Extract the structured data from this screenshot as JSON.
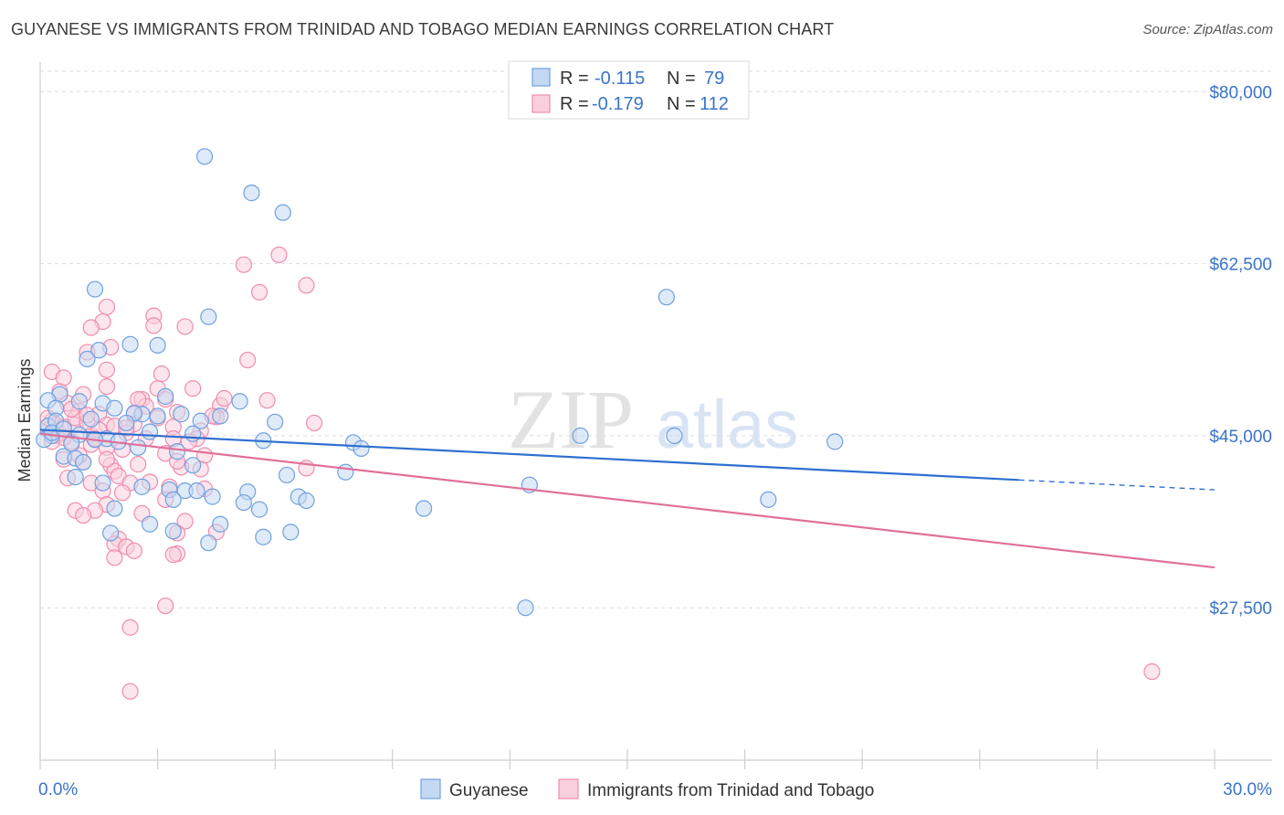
{
  "title": "GUYANESE VS IMMIGRANTS FROM TRINIDAD AND TOBAGO MEDIAN EARNINGS CORRELATION CHART",
  "source": "Source: ZipAtlas.com",
  "watermark": {
    "zip": "ZIP",
    "atlas": "atlas"
  },
  "colors": {
    "blue": "#6fa0e0",
    "blue_fill": "#c5d8f3",
    "blue_line": "#2f6fcf",
    "pink": "#f08cae",
    "pink_fill": "#f9cfdd",
    "pink_line": "#e0709a",
    "axis_text": "#3a74c9",
    "grid": "#dddddd"
  },
  "legend": {
    "rows": [
      {
        "r_label": "R = ",
        "r_value": "-0.115",
        "n_label": "N = ",
        "n_value": "79"
      },
      {
        "r_label": "R = ",
        "r_value": "-0.179",
        "n_label": "N = ",
        "n_value": "112"
      }
    ]
  },
  "chart_data": {
    "type": "scatter",
    "xlabel": "",
    "ylabel": "Median Earnings",
    "xlim": [
      0,
      30
    ],
    "ylim": [
      12000,
      83000
    ],
    "x_tick_labels": [
      "0.0%",
      "30.0%"
    ],
    "y_ticks": [
      27500,
      45000,
      62500,
      80000
    ],
    "y_tick_labels": [
      "$27,500",
      "$45,000",
      "$62,500",
      "$80,000"
    ],
    "legend_position": "top-center",
    "series": [
      {
        "name": "Guyanese",
        "R": -0.115,
        "N": 79,
        "trend": {
          "x0": 0,
          "y0": 45600,
          "x1": 25,
          "y1": 40500,
          "dash_to": 30,
          "dash_y": 39500
        },
        "points": [
          [
            4.2,
            73400
          ],
          [
            5.4,
            69700
          ],
          [
            6.2,
            67700
          ],
          [
            1.4,
            59900
          ],
          [
            4.3,
            57100
          ],
          [
            2.3,
            54300
          ],
          [
            1.5,
            53700
          ],
          [
            3.0,
            54200
          ],
          [
            1.2,
            52800
          ],
          [
            16.0,
            59100
          ],
          [
            0.5,
            49200
          ],
          [
            1.0,
            48500
          ],
          [
            1.6,
            48300
          ],
          [
            2.6,
            47200
          ],
          [
            3.2,
            49000
          ],
          [
            5.1,
            48500
          ],
          [
            0.2,
            48600
          ],
          [
            0.4,
            47800
          ],
          [
            1.9,
            47800
          ],
          [
            2.4,
            47300
          ],
          [
            4.6,
            47000
          ],
          [
            3.0,
            47000
          ],
          [
            4.1,
            46500
          ],
          [
            6.0,
            46400
          ],
          [
            2.8,
            45400
          ],
          [
            3.9,
            45200
          ],
          [
            1.7,
            44700
          ],
          [
            5.7,
            44500
          ],
          [
            8.0,
            44300
          ],
          [
            13.8,
            45000
          ],
          [
            16.2,
            45000
          ],
          [
            20.3,
            44400
          ],
          [
            0.3,
            45000
          ],
          [
            0.1,
            44600
          ],
          [
            1.0,
            45100
          ],
          [
            1.4,
            44600
          ],
          [
            2.0,
            44400
          ],
          [
            3.5,
            43400
          ],
          [
            8.2,
            43700
          ],
          [
            0.6,
            42900
          ],
          [
            0.9,
            42700
          ],
          [
            1.1,
            42300
          ],
          [
            3.9,
            42000
          ],
          [
            6.3,
            41000
          ],
          [
            7.8,
            41300
          ],
          [
            0.9,
            40800
          ],
          [
            1.6,
            40200
          ],
          [
            2.6,
            39800
          ],
          [
            3.3,
            39500
          ],
          [
            3.7,
            39400
          ],
          [
            4.0,
            39400
          ],
          [
            5.3,
            39300
          ],
          [
            6.6,
            38800
          ],
          [
            12.5,
            40000
          ],
          [
            4.4,
            38800
          ],
          [
            3.4,
            38500
          ],
          [
            5.2,
            38200
          ],
          [
            6.8,
            38400
          ],
          [
            1.9,
            37600
          ],
          [
            5.6,
            37500
          ],
          [
            9.8,
            37600
          ],
          [
            18.6,
            38500
          ],
          [
            2.8,
            36000
          ],
          [
            4.6,
            36000
          ],
          [
            3.4,
            35300
          ],
          [
            1.8,
            35100
          ],
          [
            6.4,
            35200
          ],
          [
            5.7,
            34700
          ],
          [
            4.3,
            34100
          ],
          [
            12.4,
            27500
          ],
          [
            0.2,
            46000
          ],
          [
            0.4,
            46500
          ],
          [
            0.3,
            45300
          ],
          [
            0.6,
            45700
          ],
          [
            0.8,
            44200
          ],
          [
            2.2,
            46300
          ],
          [
            1.3,
            46700
          ],
          [
            3.6,
            47200
          ],
          [
            2.5,
            43800
          ]
        ]
      },
      {
        "name": "Immigrants from Trinidad and Tobago",
        "R": -0.179,
        "N": 112,
        "trend": {
          "x0": 0,
          "y0": 45200,
          "x1": 30,
          "y1": 31600
        },
        "points": [
          [
            6.1,
            63400
          ],
          [
            5.2,
            62400
          ],
          [
            6.8,
            60300
          ],
          [
            5.6,
            59600
          ],
          [
            1.7,
            58100
          ],
          [
            2.9,
            57200
          ],
          [
            1.6,
            56600
          ],
          [
            1.3,
            56000
          ],
          [
            3.7,
            56100
          ],
          [
            2.9,
            56200
          ],
          [
            1.8,
            54000
          ],
          [
            1.2,
            53500
          ],
          [
            5.3,
            52700
          ],
          [
            1.7,
            51700
          ],
          [
            3.1,
            51300
          ],
          [
            0.3,
            51500
          ],
          [
            0.6,
            50900
          ],
          [
            1.7,
            50000
          ],
          [
            3.0,
            49800
          ],
          [
            3.9,
            49800
          ],
          [
            0.5,
            49500
          ],
          [
            1.1,
            49200
          ],
          [
            2.6,
            48700
          ],
          [
            3.2,
            48700
          ],
          [
            4.6,
            48100
          ],
          [
            4.7,
            48800
          ],
          [
            2.7,
            48000
          ],
          [
            0.7,
            48300
          ],
          [
            1.0,
            47500
          ],
          [
            1.5,
            47200
          ],
          [
            2.4,
            47200
          ],
          [
            3.5,
            47400
          ],
          [
            4.5,
            46900
          ],
          [
            7.0,
            46300
          ],
          [
            0.3,
            46500
          ],
          [
            0.9,
            46100
          ],
          [
            1.7,
            46100
          ],
          [
            2.4,
            46200
          ],
          [
            3.4,
            45900
          ],
          [
            4.1,
            45500
          ],
          [
            0.2,
            45600
          ],
          [
            0.5,
            45200
          ],
          [
            1.3,
            45100
          ],
          [
            2.2,
            45300
          ],
          [
            3.4,
            44700
          ],
          [
            4.0,
            44700
          ],
          [
            0.8,
            44400
          ],
          [
            1.3,
            44100
          ],
          [
            1.7,
            43800
          ],
          [
            2.1,
            43600
          ],
          [
            3.2,
            43200
          ],
          [
            4.2,
            43000
          ],
          [
            0.6,
            42600
          ],
          [
            1.1,
            42300
          ],
          [
            1.8,
            42000
          ],
          [
            2.5,
            42100
          ],
          [
            3.6,
            41800
          ],
          [
            4.1,
            41600
          ],
          [
            6.8,
            41700
          ],
          [
            1.9,
            41400
          ],
          [
            2.0,
            40900
          ],
          [
            0.7,
            40700
          ],
          [
            1.3,
            40200
          ],
          [
            2.3,
            40200
          ],
          [
            3.3,
            39800
          ],
          [
            4.2,
            39600
          ],
          [
            1.6,
            39400
          ],
          [
            2.1,
            39200
          ],
          [
            3.2,
            38500
          ],
          [
            1.7,
            38000
          ],
          [
            1.4,
            37400
          ],
          [
            0.9,
            37400
          ],
          [
            1.1,
            36900
          ],
          [
            2.6,
            37100
          ],
          [
            3.7,
            36300
          ],
          [
            4.5,
            35200
          ],
          [
            3.5,
            35100
          ],
          [
            2.0,
            34500
          ],
          [
            1.9,
            34000
          ],
          [
            2.2,
            33700
          ],
          [
            2.4,
            33300
          ],
          [
            3.5,
            33000
          ],
          [
            3.4,
            32900
          ],
          [
            1.9,
            32600
          ],
          [
            3.2,
            27700
          ],
          [
            2.3,
            25500
          ],
          [
            2.3,
            19000
          ],
          [
            28.4,
            21000
          ],
          [
            0.4,
            46100
          ],
          [
            0.6,
            45900
          ],
          [
            0.2,
            46800
          ],
          [
            0.9,
            46800
          ],
          [
            1.2,
            46400
          ],
          [
            0.4,
            45000
          ],
          [
            0.6,
            44800
          ],
          [
            1.5,
            45600
          ],
          [
            2.7,
            44700
          ],
          [
            3.5,
            42400
          ],
          [
            2.8,
            40300
          ],
          [
            1.4,
            44700
          ],
          [
            3.0,
            46800
          ],
          [
            0.8,
            47700
          ],
          [
            1.9,
            46000
          ],
          [
            2.2,
            45800
          ],
          [
            4.4,
            47000
          ],
          [
            5.8,
            48600
          ],
          [
            0.3,
            44400
          ],
          [
            1.0,
            43000
          ],
          [
            1.7,
            42600
          ],
          [
            3.8,
            44400
          ],
          [
            2.5,
            48700
          ],
          [
            1.2,
            47100
          ]
        ]
      }
    ]
  }
}
